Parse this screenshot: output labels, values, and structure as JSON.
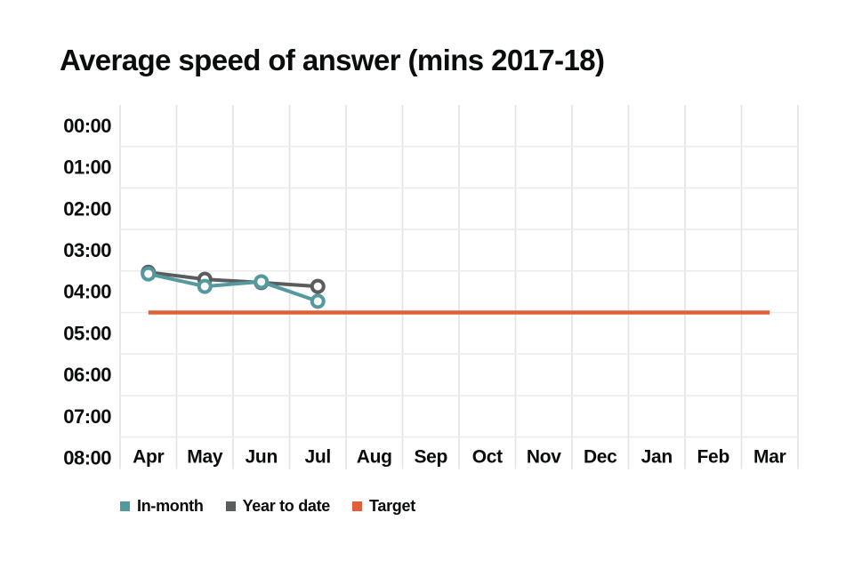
{
  "chart_data": {
    "type": "line",
    "title": "Average speed of answer (mins 2017-18)",
    "categories": [
      "Apr",
      "May",
      "Jun",
      "Jul",
      "Aug",
      "Sep",
      "Oct",
      "Nov",
      "Dec",
      "Jan",
      "Feb",
      "Mar"
    ],
    "y_ticks": [
      "00:00",
      "01:00",
      "02:00",
      "03:00",
      "04:00",
      "05:00",
      "06:00",
      "07:00",
      "08:00"
    ],
    "y_axis_inverted": true,
    "ylim_minutes": [
      0,
      8
    ],
    "xlabel": "",
    "ylabel": "",
    "grid": true,
    "legend_position": "bottom-left",
    "series": [
      {
        "name": "In-month",
        "color": "#539a9e",
        "style": "line-markers",
        "values_mmss": [
          "03:34",
          "03:52",
          "03:46",
          "04:14",
          null,
          null,
          null,
          null,
          null,
          null,
          null,
          null
        ],
        "values_minutes": [
          3.57,
          3.87,
          3.76,
          4.23,
          null,
          null,
          null,
          null,
          null,
          null,
          null,
          null
        ]
      },
      {
        "name": "Year to date",
        "color": "#5b5c5e",
        "style": "line-markers",
        "values_mmss": [
          "03:32",
          "03:42",
          "03:47",
          "03:52",
          null,
          null,
          null,
          null,
          null,
          null,
          null,
          null
        ],
        "values_minutes": [
          3.53,
          3.7,
          3.78,
          3.87,
          null,
          null,
          null,
          null,
          null,
          null,
          null,
          null
        ]
      },
      {
        "name": "Target",
        "color": "#e0603a",
        "style": "rule",
        "value_mmss": "04:30",
        "value_minutes": 4.5,
        "span_categories": [
          "Apr",
          "Mar"
        ]
      }
    ],
    "colors": {
      "text": "#0b0c0c",
      "grid_horizontal": "#ececec",
      "grid_vertical": "#e3e3e3",
      "background": "#ffffff"
    }
  }
}
